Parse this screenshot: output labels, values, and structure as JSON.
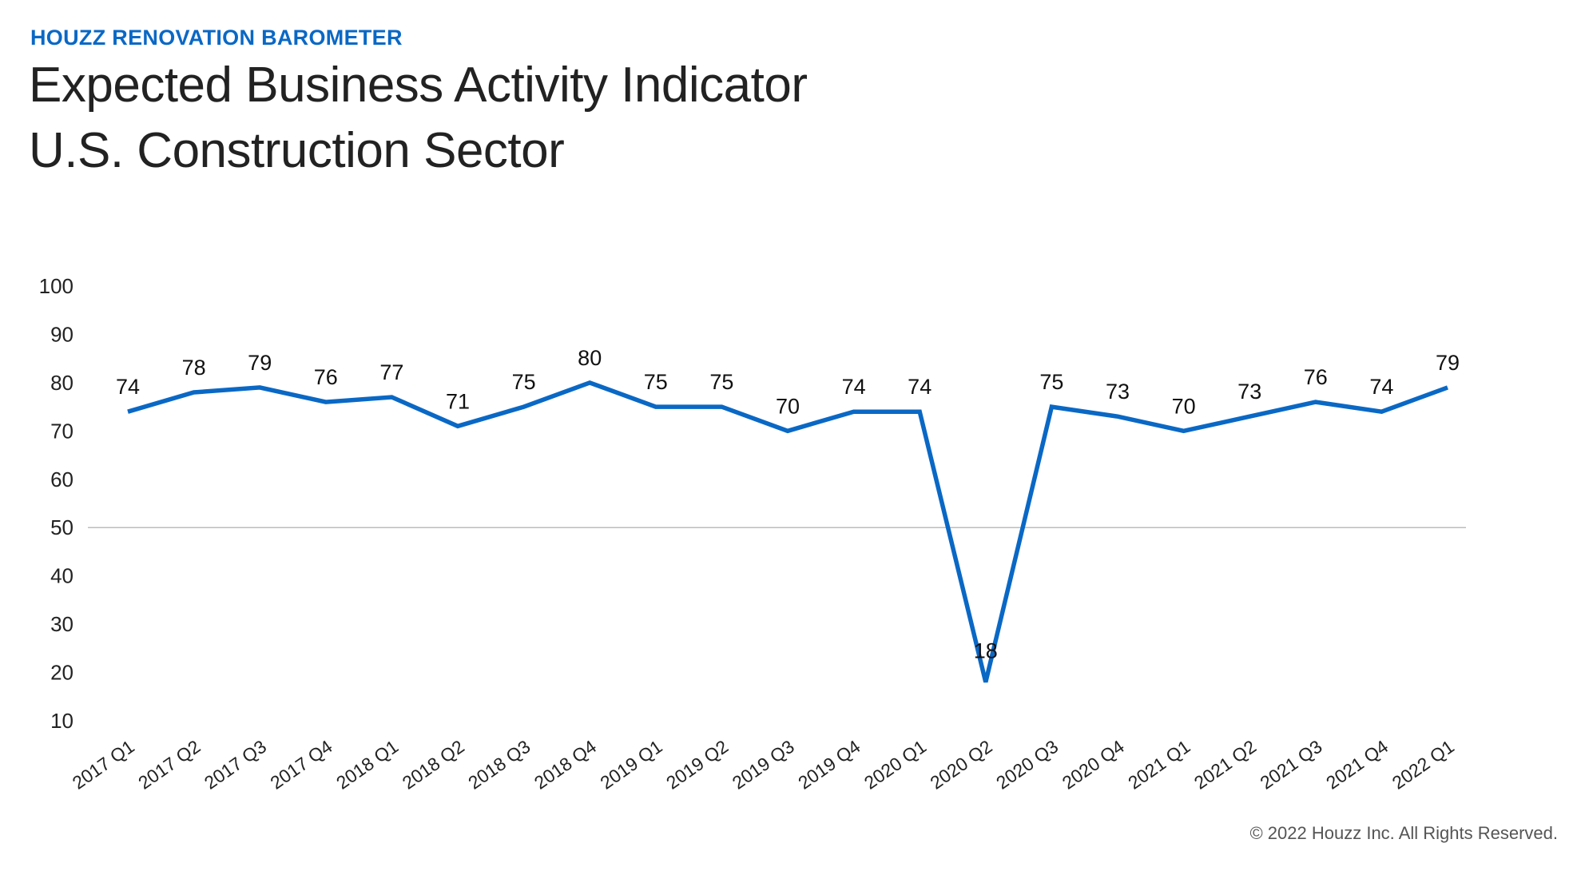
{
  "header": {
    "kicker": "HOUZZ RENOVATION BAROMETER",
    "title_line1": "Expected Business Activity Indicator",
    "title_line2": "U.S. Construction Sector"
  },
  "footer": {
    "copyright": "© 2022 Houzz Inc. All Rights Reserved."
  },
  "colors": {
    "series": "#0a68c5",
    "reference_line": "#bdbdbd",
    "text": "#222222"
  },
  "chart_data": {
    "type": "line",
    "title": "",
    "xlabel": "",
    "ylabel": "",
    "ylim": [
      10,
      100
    ],
    "yticks": [
      10,
      20,
      30,
      40,
      50,
      60,
      70,
      80,
      90,
      100
    ],
    "reference_line": 50,
    "grid": false,
    "categories": [
      "2017 Q1",
      "2017 Q2",
      "2017 Q3",
      "2017 Q4",
      "2018 Q1",
      "2018 Q2",
      "2018 Q3",
      "2018 Q4",
      "2019 Q1",
      "2019 Q2",
      "2019 Q3",
      "2019 Q4",
      "2020 Q1",
      "2020 Q2",
      "2020 Q3",
      "2020 Q4",
      "2021 Q1",
      "2021 Q2",
      "2021 Q3",
      "2021 Q4",
      "2022 Q1"
    ],
    "series": [
      {
        "values": [
          74,
          78,
          79,
          76,
          77,
          71,
          75,
          80,
          75,
          75,
          70,
          74,
          74,
          18,
          75,
          73,
          70,
          73,
          76,
          74,
          79
        ],
        "labels": [
          "74",
          "78",
          "79",
          "76",
          "77",
          "71",
          "75",
          "80",
          "75",
          "75",
          "70",
          "74",
          "74",
          "18",
          "75",
          "73",
          "70",
          "73",
          "76",
          "74",
          "79"
        ]
      }
    ]
  }
}
